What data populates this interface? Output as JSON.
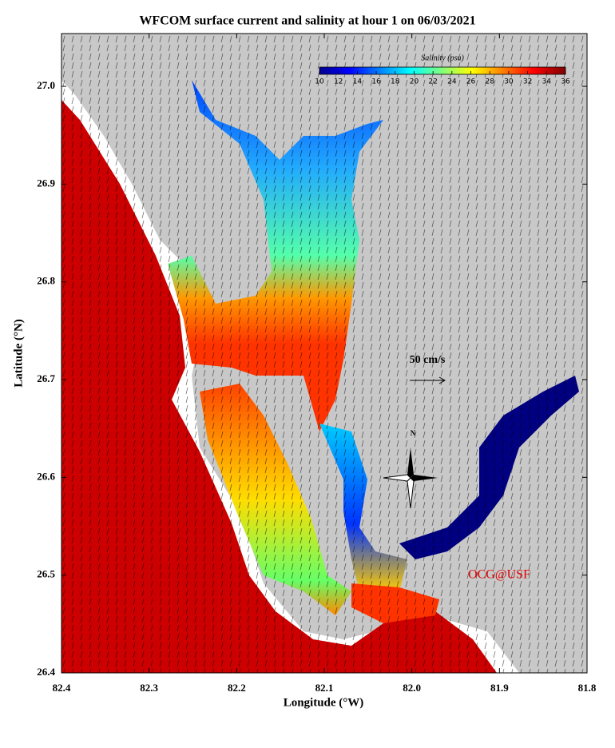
{
  "map": {
    "title": "WFCOM surface current and salinity at hour 1 on 06/03/2021",
    "xlabel": "Longitude (°W)",
    "ylabel": "Latitude (°N)",
    "xlim": [
      82.4,
      81.8
    ],
    "ylim": [
      26.4,
      27.054
    ],
    "xticks": [
      82.4,
      82.3,
      82.2,
      82.1,
      {
        "value": 82,
        "label": "82.0"
      },
      81.9,
      81.8
    ],
    "yticks": [
      26.4,
      26.5,
      26.6,
      26.7,
      26.8,
      26.9,
      {
        "value": 27,
        "label": "27.0"
      }
    ],
    "colorbar": {
      "title": "Salinity (psu)",
      "lim": [
        10,
        36
      ],
      "ticks": [
        10,
        12,
        14,
        16,
        18,
        20,
        22,
        24,
        26,
        28,
        30,
        32,
        34,
        36
      ]
    },
    "scale_label": "50 cm/s",
    "north_label": "N",
    "credit": "OCG@USF"
  }
}
